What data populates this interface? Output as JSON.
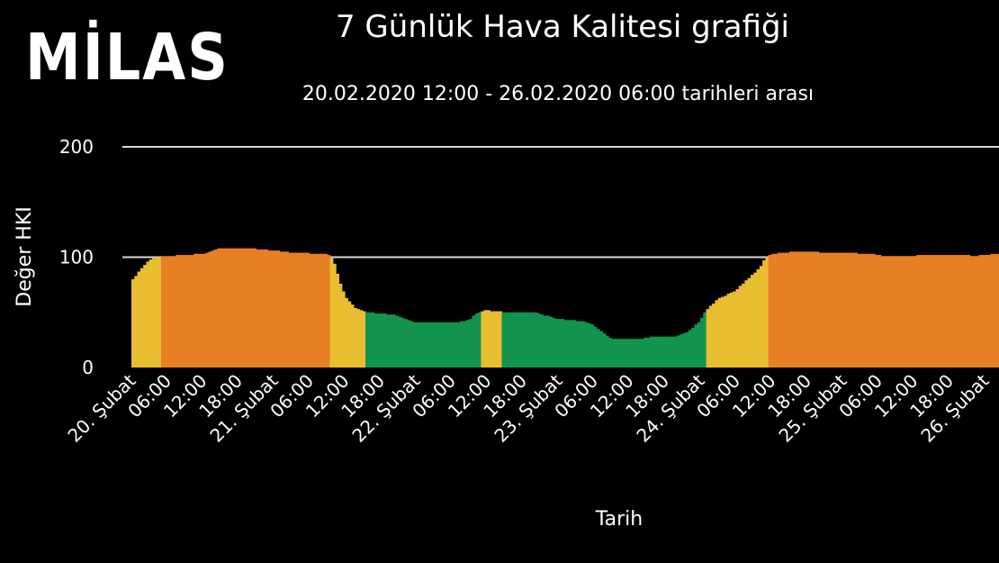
{
  "logo": "MİLAS",
  "chart_data": {
    "type": "bar",
    "title": "7 Günlük Hava Kalitesi grafiği",
    "subtitle": "20.02.2020 12:00 - 26.02.2020 06:00 tarihleri arası",
    "xlabel": "Tarih",
    "ylabel": "Değer HKI",
    "ylim": [
      0,
      200
    ],
    "yticks": [
      0,
      100,
      200
    ],
    "grid": true,
    "colors": {
      "good": "#12934e",
      "moderate": "#e8bd30",
      "unhealthy": "#e77f24"
    },
    "xticks": [
      "20. Şubat",
      "06:00",
      "12:00",
      "18:00",
      "21. Şubat",
      "06:00",
      "12:00",
      "18:00",
      "22. Şubat",
      "06:00",
      "12:00",
      "18:00",
      "23. Şubat",
      "06:00",
      "12:00",
      "18:00",
      "24. Şubat",
      "06:00",
      "12:00",
      "18:00",
      "25. Şubat",
      "06:00",
      "12:00",
      "18:00",
      "26. Şubat"
    ],
    "x_start_hour": 0,
    "hours_per_tick": 6,
    "hourly_points": [
      [
        0,
        78
      ],
      [
        1,
        85
      ],
      [
        2,
        92
      ],
      [
        3,
        97
      ],
      [
        4,
        100
      ],
      [
        6,
        101
      ],
      [
        12,
        103
      ],
      [
        15,
        108
      ],
      [
        20,
        108
      ],
      [
        24,
        106
      ],
      [
        27,
        104
      ],
      [
        33,
        103
      ],
      [
        34,
        98
      ],
      [
        35,
        80
      ],
      [
        36,
        65
      ],
      [
        37,
        58
      ],
      [
        38,
        53
      ],
      [
        40,
        50
      ],
      [
        44,
        48
      ],
      [
        46,
        44
      ],
      [
        48,
        41
      ],
      [
        55,
        41
      ],
      [
        57,
        43
      ],
      [
        58,
        48
      ],
      [
        60,
        52
      ],
      [
        61,
        51
      ],
      [
        64,
        50
      ],
      [
        68,
        50
      ],
      [
        70,
        47
      ],
      [
        72,
        44
      ],
      [
        76,
        42
      ],
      [
        78,
        38
      ],
      [
        80,
        30
      ],
      [
        81,
        26
      ],
      [
        86,
        26
      ],
      [
        88,
        28
      ],
      [
        92,
        28
      ],
      [
        94,
        33
      ],
      [
        96,
        42
      ],
      [
        97,
        52
      ],
      [
        99,
        62
      ],
      [
        102,
        70
      ],
      [
        104,
        80
      ],
      [
        106,
        90
      ],
      [
        107,
        99
      ],
      [
        108,
        103
      ],
      [
        112,
        105
      ],
      [
        120,
        104
      ],
      [
        125,
        103
      ],
      [
        127,
        101
      ],
      [
        132,
        101
      ],
      [
        133,
        102
      ],
      [
        141,
        102
      ],
      [
        142,
        101
      ],
      [
        146,
        103
      ],
      [
        153,
        104
      ],
      [
        156,
        104
      ]
    ]
  }
}
